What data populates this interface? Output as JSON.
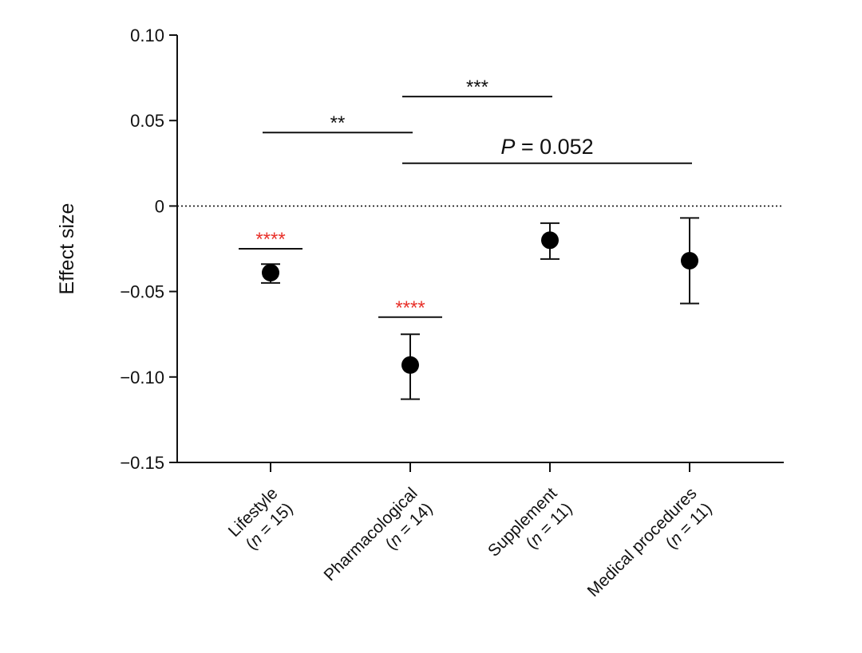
{
  "chart_data": {
    "type": "scatter",
    "ylabel": "Effect size",
    "xlabel": "",
    "title": "",
    "ylim": [
      -0.15,
      0.1
    ],
    "yticks": [
      0.1,
      0.05,
      0,
      -0.05,
      -0.1,
      -0.15
    ],
    "ytick_labels": [
      "0.10",
      "0.05",
      "0",
      "−0.05",
      "−0.10",
      "−0.15"
    ],
    "reference_line": {
      "y": 0,
      "style": "dotted"
    },
    "categories": [
      {
        "name": "Lifestyle",
        "n_label": "(n = 15)",
        "n_prefix": "(",
        "n_italic": "n",
        "n_suffix": " = 15)"
      },
      {
        "name": "Pharmacological",
        "n_label": "(n = 14)",
        "n_prefix": "(",
        "n_italic": "n",
        "n_suffix": " = 14)"
      },
      {
        "name": "Supplement",
        "n_label": "(n = 11)",
        "n_prefix": "(",
        "n_italic": "n",
        "n_suffix": " = 11)"
      },
      {
        "name": "Medical procedures",
        "n_label": "(n = 11)",
        "n_prefix": "(",
        "n_italic": "n",
        "n_suffix": " = 11)"
      }
    ],
    "points": [
      {
        "category": "Lifestyle",
        "y": -0.039,
        "lower": -0.045,
        "upper": -0.034
      },
      {
        "category": "Pharmacological",
        "y": -0.093,
        "lower": -0.113,
        "upper": -0.075
      },
      {
        "category": "Supplement",
        "y": -0.02,
        "lower": -0.031,
        "upper": -0.01
      },
      {
        "category": "Medical procedures",
        "y": -0.032,
        "lower": -0.057,
        "upper": -0.007
      }
    ],
    "point_color": "#000000",
    "significance_single": [
      {
        "category": "Lifestyle",
        "label": "****",
        "y": -0.025,
        "color": "#e8312a"
      },
      {
        "category": "Pharmacological",
        "label": "****",
        "y": -0.065,
        "color": "#e8312a"
      }
    ],
    "comparisons": [
      {
        "from": 0,
        "to": 1,
        "label": "**",
        "y": 0.043,
        "italic_prefix": "",
        "color": "#111111"
      },
      {
        "from": 1,
        "to": 2,
        "label": "***",
        "y": 0.064,
        "italic_prefix": "",
        "color": "#111111"
      },
      {
        "from": 1,
        "to": 3,
        "label": " = 0.052",
        "y": 0.025,
        "italic_prefix": "P",
        "color": "#111111"
      }
    ]
  }
}
